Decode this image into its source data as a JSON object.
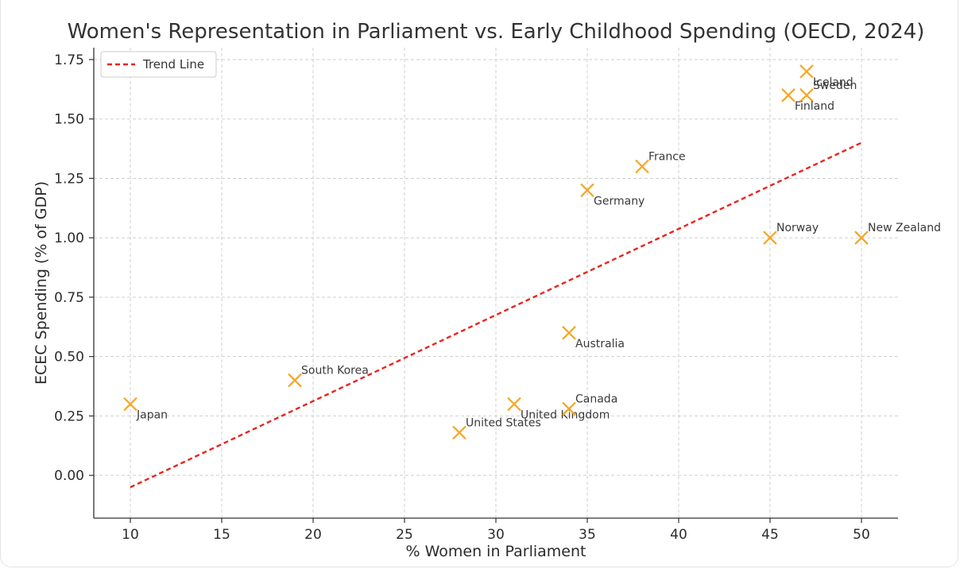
{
  "chart_data": {
    "type": "scatter",
    "title": "Women's Representation in Parliament vs. Early Childhood Spending (OECD, 2024)",
    "xlabel": "% Women in Parliament",
    "ylabel": "ECEC Spending (% of GDP)",
    "xlim": [
      8,
      52
    ],
    "ylim": [
      -0.18,
      1.8
    ],
    "xticks": [
      10,
      15,
      20,
      25,
      30,
      35,
      40,
      45,
      50
    ],
    "yticks": [
      0.0,
      0.25,
      0.5,
      0.75,
      1.0,
      1.25,
      1.5,
      1.75
    ],
    "ytick_labels": [
      "0.00",
      "0.25",
      "0.50",
      "0.75",
      "1.00",
      "1.25",
      "1.50",
      "1.75"
    ],
    "grid": true,
    "marker_color": "#f5a623",
    "trend_color": "#e8251f",
    "legend_position": "top-left",
    "legend": [
      {
        "label": "Trend Line",
        "style": "dashed"
      }
    ],
    "trend_line": {
      "x": [
        10,
        50
      ],
      "y": [
        -0.05,
        1.4
      ]
    },
    "points": [
      {
        "label": "Iceland",
        "x": 47,
        "y": 1.7,
        "label_pos": "below-right"
      },
      {
        "label": "Sweden",
        "x": 47,
        "y": 1.6,
        "label_pos": "above-right"
      },
      {
        "label": "Finland",
        "x": 46,
        "y": 1.6,
        "label_pos": "below-right"
      },
      {
        "label": "France",
        "x": 38,
        "y": 1.3,
        "label_pos": "above-right"
      },
      {
        "label": "Germany",
        "x": 35,
        "y": 1.2,
        "label_pos": "below-right"
      },
      {
        "label": "Norway",
        "x": 45,
        "y": 1.0,
        "label_pos": "above-right"
      },
      {
        "label": "New Zealand",
        "x": 50,
        "y": 1.0,
        "label_pos": "above-right"
      },
      {
        "label": "Australia",
        "x": 34,
        "y": 0.6,
        "label_pos": "below-right"
      },
      {
        "label": "South Korea",
        "x": 19,
        "y": 0.4,
        "label_pos": "above-right"
      },
      {
        "label": "Japan",
        "x": 10,
        "y": 0.3,
        "label_pos": "below-right"
      },
      {
        "label": "United Kingdom",
        "x": 31,
        "y": 0.3,
        "label_pos": "below-right"
      },
      {
        "label": "Canada",
        "x": 34,
        "y": 0.28,
        "label_pos": "above-right"
      },
      {
        "label": "United States",
        "x": 28,
        "y": 0.18,
        "label_pos": "above-right"
      }
    ]
  }
}
